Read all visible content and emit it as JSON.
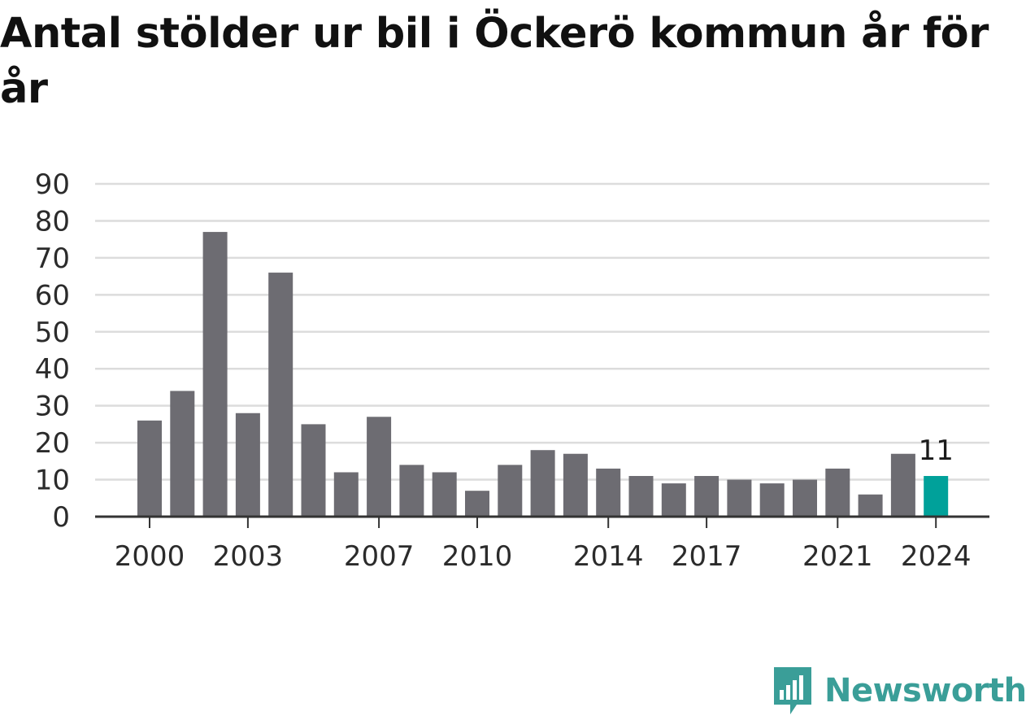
{
  "title": "Antal stölder ur bil i Öckerö kommun år för år",
  "brand": {
    "name": "Newsworthy",
    "icon": "newsworthy-logo-icon",
    "color": "#3a9e98"
  },
  "chart_data": {
    "type": "bar",
    "title": "Antal stölder ur bil i Öckerö kommun år för år",
    "xlabel": "",
    "ylabel": "",
    "categories": [
      "2000",
      "2001",
      "2002",
      "2003",
      "2004",
      "2005",
      "2006",
      "2007",
      "2008",
      "2009",
      "2010",
      "2011",
      "2012",
      "2013",
      "2014",
      "2015",
      "2016",
      "2017",
      "2018",
      "2019",
      "2020",
      "2021",
      "2022",
      "2023",
      "2024"
    ],
    "values": [
      26,
      34,
      77,
      28,
      66,
      25,
      12,
      27,
      14,
      12,
      7,
      14,
      18,
      17,
      13,
      11,
      9,
      11,
      10,
      9,
      10,
      13,
      6,
      17,
      11
    ],
    "ylim": [
      0,
      90
    ],
    "yticks": [
      0,
      10,
      20,
      30,
      40,
      50,
      60,
      70,
      80,
      90
    ],
    "xtick_labels": [
      "2000",
      "2003",
      "2007",
      "2010",
      "2014",
      "2017",
      "2021",
      "2024"
    ],
    "grid": true,
    "colors": {
      "bar": "#6d6c72",
      "highlight": "#00a19a",
      "grid": "#dcdcdc",
      "axis": "#333333"
    },
    "highlight": {
      "category": "2024",
      "label": "11"
    }
  }
}
